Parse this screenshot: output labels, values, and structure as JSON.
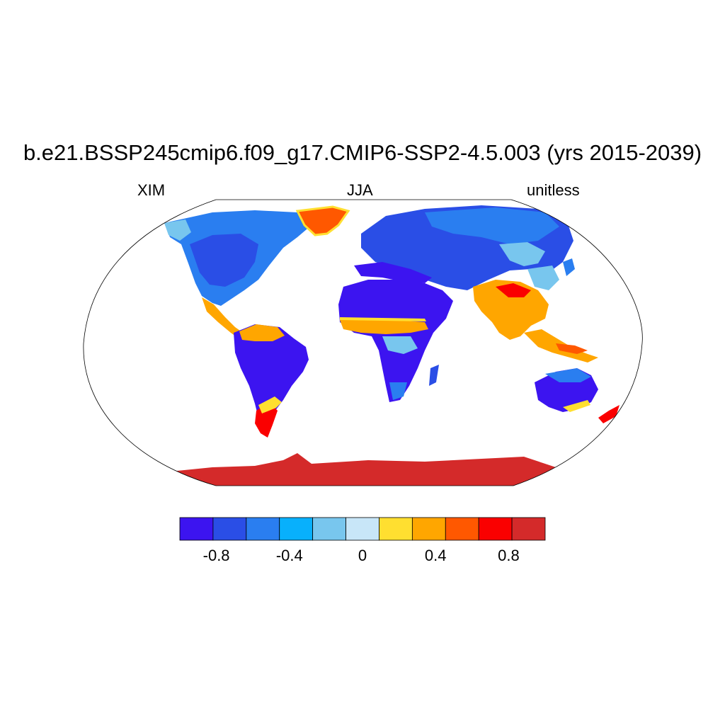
{
  "figure": {
    "title": "b.e21.BSSP245cmip6.f09_g17.CMIP6-SSP2-4.5.003 (yrs 2015-2039)",
    "left_label": "XIM",
    "center_label": "JJA",
    "right_label": "unitless"
  },
  "colorbar": {
    "colors": [
      "#3c14f0",
      "#2a4ee6",
      "#2a7ef0",
      "#08b0fc",
      "#78c6ee",
      "#c8e6f8",
      "#ffdf30",
      "#ffa600",
      "#ff5800",
      "#fa0000",
      "#d42a2a"
    ],
    "ticks": [
      {
        "label": "-0.8",
        "value": -0.8
      },
      {
        "label": "-0.4",
        "value": -0.4
      },
      {
        "label": "0",
        "value": 0
      },
      {
        "label": "0.4",
        "value": 0.4
      },
      {
        "label": "0.8",
        "value": 0.8
      }
    ],
    "range": [
      -1.0,
      1.0
    ]
  },
  "map": {
    "projection": "Robinson",
    "background_ocean": "#ffffff",
    "outline_color": "#000000"
  }
}
